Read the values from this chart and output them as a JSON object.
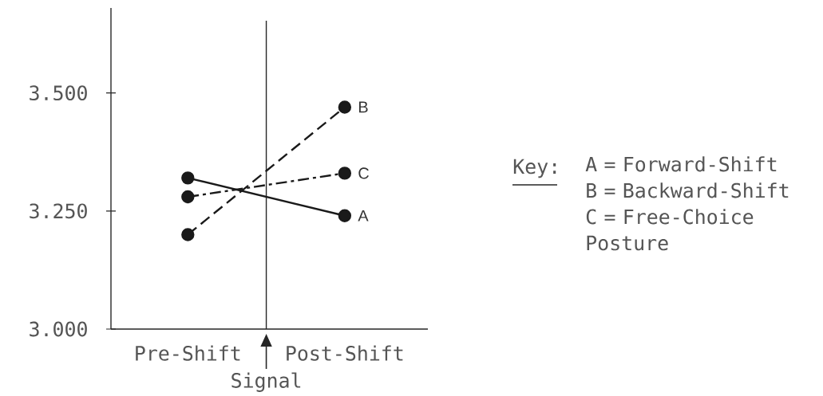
{
  "chart_data": {
    "type": "line",
    "categories": [
      "Pre-Shift",
      "Post-Shift"
    ],
    "series": [
      {
        "name": "A",
        "color": "#1a1a1a",
        "values": [
          3.32,
          3.24
        ],
        "line_style": "solid"
      },
      {
        "name": "B",
        "color": "#1a1a1a",
        "values": [
          3.2,
          3.47
        ],
        "line_style": "dashed"
      },
      {
        "name": "C",
        "color": "#1a1a1a",
        "values": [
          3.28,
          3.33
        ],
        "line_style": "dashdot"
      }
    ],
    "ylim": [
      3.0,
      3.68
    ],
    "yticks": [
      {
        "value": 3.0,
        "label": "3.000"
      },
      {
        "value": 3.25,
        "label": "3.250"
      },
      {
        "value": 3.5,
        "label": "3.500"
      }
    ],
    "marker": "circle",
    "legend": false,
    "annotations": [
      "Key:",
      "A = Forward-Shift",
      "B = Backward-Shift",
      "C = Free-Choice Posture",
      "Signal"
    ]
  }
}
